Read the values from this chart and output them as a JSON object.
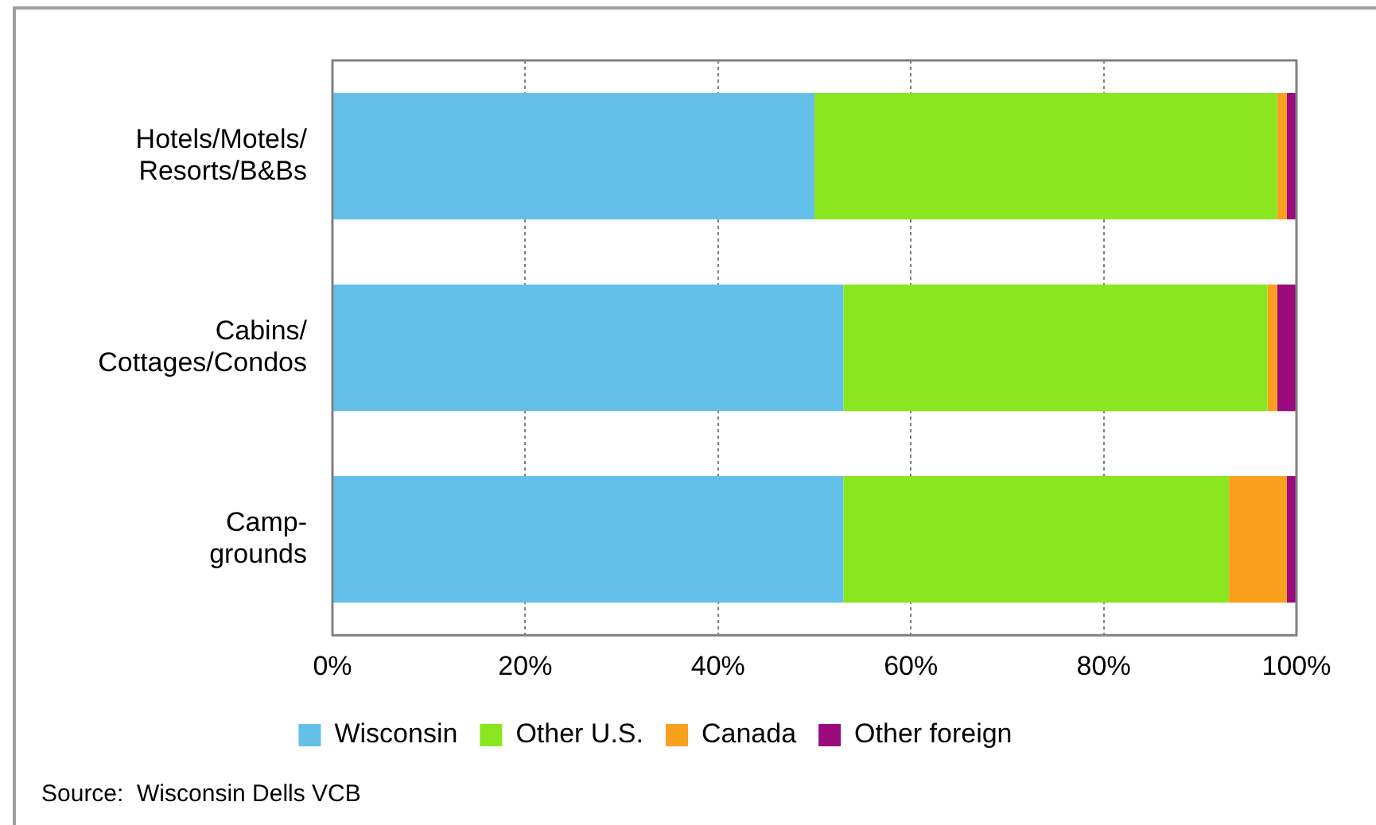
{
  "chart_data": {
    "type": "bar",
    "orientation": "horizontal",
    "stacked": true,
    "categories": [
      "Hotels/Motels/ Resorts/B&Bs",
      "Cabins/ Cottages/Condos",
      "Camp- grounds"
    ],
    "series": [
      {
        "name": "Wisconsin",
        "color": "#64c0e8",
        "values": [
          50,
          53,
          53
        ]
      },
      {
        "name": "Other U.S.",
        "color": "#8ae61f",
        "values": [
          48,
          44,
          40
        ]
      },
      {
        "name": "Canada",
        "color": "#fa9f1e",
        "values": [
          1,
          1,
          6
        ]
      },
      {
        "name": "Other foreign",
        "color": "#9b0a7d",
        "values": [
          1,
          2,
          1
        ]
      }
    ],
    "xlim": [
      0,
      100
    ],
    "xticks": [
      {
        "value": 0,
        "label": "0%"
      },
      {
        "value": 20,
        "label": "20%"
      },
      {
        "value": 40,
        "label": "40%"
      },
      {
        "value": 60,
        "label": "60%"
      },
      {
        "value": 80,
        "label": "80%"
      },
      {
        "value": 100,
        "label": "100%"
      }
    ],
    "grid": "x",
    "legend": "bottom",
    "annotations": [
      "Source:  Wisconsin Dells VCB"
    ]
  }
}
